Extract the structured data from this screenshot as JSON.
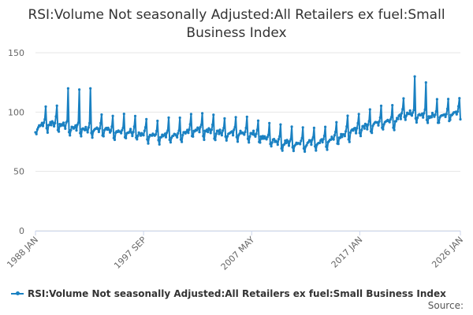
{
  "title": "RSI:Volume Not seasonally Adjusted:All Retailers ex fuel:Small Business Index",
  "source_label": "Source:",
  "colors": {
    "series": "#1a81c2",
    "grid": "#e6e6e6",
    "axis": "#ccd6eb"
  },
  "chart_data": {
    "type": "line",
    "title": "RSI:Volume Not seasonally Adjusted:All Retailers ex fuel:Small Business Index",
    "xlabel": "",
    "ylabel": "",
    "ylim": [
      0,
      150
    ],
    "y_ticks": [
      "0",
      "50",
      "100",
      "150"
    ],
    "x_ticks": [
      "1988 JAN",
      "1997 SEP",
      "2007 MAY",
      "2017 JAN",
      "2026 JAN"
    ],
    "x_range": [
      "1988-01",
      "2026-01"
    ],
    "grid": true,
    "legend": "bottom-left",
    "series": [
      {
        "name": "RSI:Volume Not seasonally Adjusted:All Retailers ex fuel:Small Business Index",
        "annual_base": [
          {
            "year": 1988,
            "value": 88
          },
          {
            "year": 1989,
            "value": 91
          },
          {
            "year": 1990,
            "value": 91
          },
          {
            "year": 1991,
            "value": 88
          },
          {
            "year": 1992,
            "value": 87
          },
          {
            "year": 1993,
            "value": 86
          },
          {
            "year": 1994,
            "value": 86
          },
          {
            "year": 1995,
            "value": 84
          },
          {
            "year": 1996,
            "value": 84
          },
          {
            "year": 1997,
            "value": 83
          },
          {
            "year": 1998,
            "value": 82
          },
          {
            "year": 1999,
            "value": 81
          },
          {
            "year": 2000,
            "value": 81
          },
          {
            "year": 2001,
            "value": 82
          },
          {
            "year": 2002,
            "value": 85
          },
          {
            "year": 2003,
            "value": 85
          },
          {
            "year": 2004,
            "value": 84
          },
          {
            "year": 2005,
            "value": 83
          },
          {
            "year": 2006,
            "value": 83
          },
          {
            "year": 2007,
            "value": 83
          },
          {
            "year": 2008,
            "value": 81
          },
          {
            "year": 2009,
            "value": 77
          },
          {
            "year": 2010,
            "value": 75
          },
          {
            "year": 2011,
            "value": 74
          },
          {
            "year": 2012,
            "value": 74
          },
          {
            "year": 2013,
            "value": 75
          },
          {
            "year": 2014,
            "value": 76
          },
          {
            "year": 2015,
            "value": 80
          },
          {
            "year": 2016,
            "value": 83
          },
          {
            "year": 2017,
            "value": 87
          },
          {
            "year": 2018,
            "value": 90
          },
          {
            "year": 2019,
            "value": 93
          },
          {
            "year": 2020,
            "value": 92
          },
          {
            "year": 2021,
            "value": 100
          },
          {
            "year": 2022,
            "value": 99
          },
          {
            "year": 2023,
            "value": 97
          },
          {
            "year": 2024,
            "value": 97
          },
          {
            "year": 2025,
            "value": 99
          },
          {
            "year": 2026,
            "value": 100
          }
        ],
        "monthly_pattern": [
          -5,
          -7,
          -2,
          -1,
          0,
          -1,
          1,
          0,
          -2,
          1,
          4,
          13
        ],
        "december_peaks": [
          {
            "year": 1990,
            "value": 120
          },
          {
            "year": 1991,
            "value": 119
          },
          {
            "year": 1992,
            "value": 120
          },
          {
            "year": 2021,
            "value": 130
          },
          {
            "year": 2022,
            "value": 125
          }
        ]
      }
    ]
  }
}
